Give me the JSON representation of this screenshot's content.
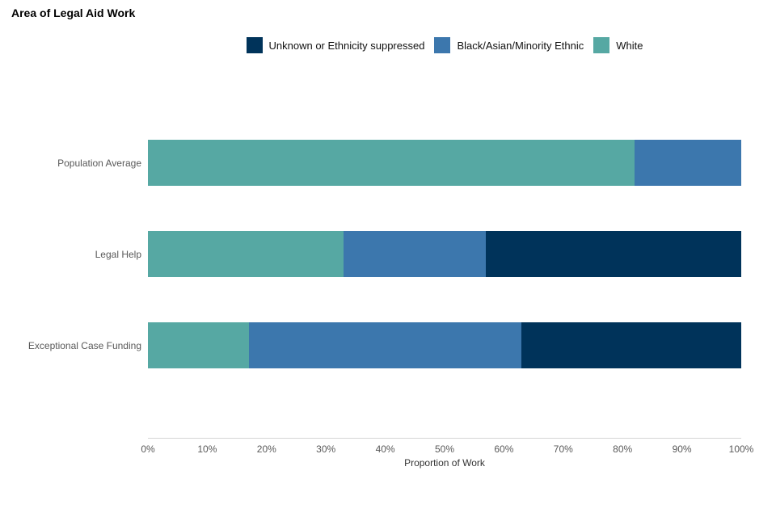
{
  "title": "Area of Legal Aid Work",
  "legend": {
    "items": [
      {
        "label": "Unknown or Ethnicity suppressed",
        "color": "#00335a"
      },
      {
        "label": "Black/Asian/Minority Ethnic",
        "color": "#3c77ad"
      },
      {
        "label": "White",
        "color": "#56a8a3"
      }
    ]
  },
  "chart_data": {
    "type": "bar",
    "orientation": "horizontal",
    "stacked": true,
    "title": "Area of Legal Aid Work",
    "xlabel": "Proportion of Work",
    "ylabel": "",
    "xlim": [
      0,
      100
    ],
    "x_ticks": [
      "0%",
      "10%",
      "20%",
      "30%",
      "40%",
      "50%",
      "60%",
      "70%",
      "80%",
      "90%",
      "100%"
    ],
    "grid": false,
    "legend_position": "top",
    "categories": [
      "Population Average",
      "Legal Help",
      "Exceptional Case Funding"
    ],
    "series": [
      {
        "name": "White",
        "color": "#56a8a3",
        "values": [
          82,
          33,
          17
        ]
      },
      {
        "name": "Black/Asian/Minority Ethnic",
        "color": "#3c77ad",
        "values": [
          18,
          24,
          46
        ]
      },
      {
        "name": "Unknown or Ethnicity suppressed",
        "color": "#00335a",
        "values": [
          0,
          43,
          37
        ]
      }
    ]
  }
}
